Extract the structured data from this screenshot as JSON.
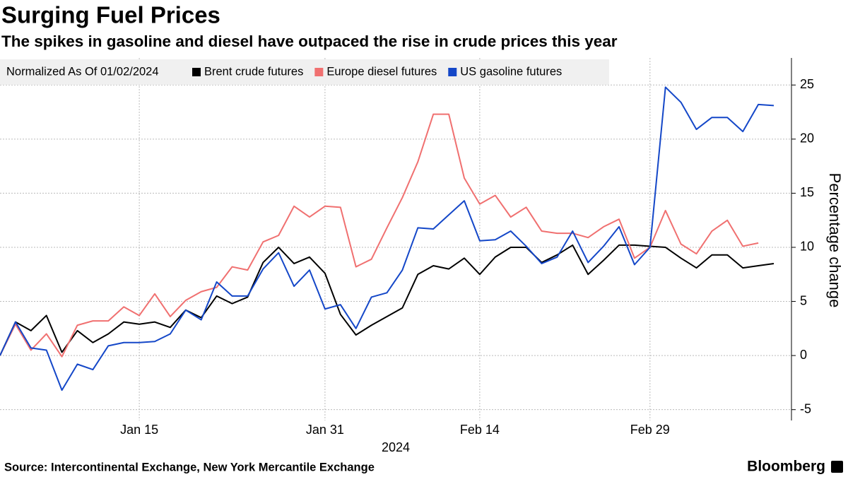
{
  "chart_data": {
    "type": "line",
    "title": "Surging Fuel Prices",
    "subtitle": "The spikes in gasoline and diesel have outpaced the rise in crude prices this year",
    "legend_title": "Normalized As Of 01/02/2024",
    "y_label": "Percentage change",
    "x_label": "2024",
    "source": "Source: Intercontinental Exchange, New York Mercantile Exchange",
    "brand": "Bloomberg",
    "categories": [
      null,
      null,
      null,
      null,
      null,
      null,
      null,
      null,
      null,
      "Jan 15",
      null,
      null,
      null,
      null,
      null,
      null,
      null,
      null,
      null,
      null,
      null,
      "Jan 31",
      null,
      null,
      null,
      null,
      null,
      null,
      null,
      null,
      null,
      "Feb 14",
      null,
      null,
      null,
      null,
      null,
      null,
      null,
      null,
      null,
      null,
      "Feb 29",
      null,
      null,
      null,
      null,
      null,
      null,
      null,
      null
    ],
    "series": [
      {
        "name": "Brent crude futures",
        "color": "#000000",
        "values": [
          0,
          3.1,
          2.3,
          3.7,
          0.3,
          2.3,
          1.2,
          2.0,
          3.1,
          2.9,
          3.1,
          2.6,
          4.2,
          3.5,
          5.5,
          4.8,
          5.4,
          8.6,
          10.0,
          8.5,
          9.1,
          7.6,
          3.8,
          1.9,
          2.8,
          3.6,
          4.4,
          7.5,
          8.3,
          8.0,
          9.0,
          7.5,
          9.1,
          10.0,
          10.0,
          8.6,
          9.3,
          10.2,
          7.5,
          8.8,
          10.2,
          10.2,
          10.1,
          10.0,
          9.0,
          8.1,
          9.3,
          9.3,
          8.1,
          8.3,
          8.5
        ]
      },
      {
        "name": "Europe diesel futures",
        "color": "#f07070",
        "values": [
          0,
          2.9,
          0.5,
          2.0,
          -0.1,
          2.8,
          3.2,
          3.2,
          4.5,
          3.7,
          5.7,
          3.6,
          5.1,
          5.9,
          6.3,
          8.2,
          7.9,
          10.5,
          11.1,
          13.8,
          12.8,
          13.8,
          13.7,
          8.2,
          8.9,
          11.8,
          14.6,
          17.9,
          22.3,
          22.3,
          16.4,
          14.0,
          14.8,
          12.8,
          13.7,
          11.5,
          11.3,
          11.3,
          10.9,
          11.9,
          12.6,
          9.0,
          10.0,
          13.4,
          10.3,
          9.4,
          11.5,
          12.5,
          10.1,
          10.4,
          null
        ]
      },
      {
        "name": "US gasoline futures",
        "color": "#1447c8",
        "values": [
          0,
          3.1,
          0.7,
          0.5,
          -3.2,
          -0.8,
          -1.3,
          0.9,
          1.2,
          1.2,
          1.3,
          2.0,
          4.2,
          3.3,
          6.8,
          5.5,
          5.5,
          8.0,
          9.5,
          6.4,
          7.9,
          4.3,
          4.7,
          2.5,
          5.4,
          5.8,
          7.9,
          11.8,
          11.7,
          13.0,
          14.3,
          10.6,
          10.7,
          11.5,
          10.1,
          8.5,
          9.1,
          11.5,
          8.6,
          10.1,
          11.9,
          8.4,
          10.0,
          24.8,
          23.4,
          20.9,
          22.0,
          22.0,
          20.7,
          23.2,
          23.1
        ]
      }
    ],
    "ylim": [
      -6,
      27.5
    ],
    "yticks": [
      -5,
      0,
      5,
      10,
      15,
      20,
      25
    ],
    "grid": true
  }
}
